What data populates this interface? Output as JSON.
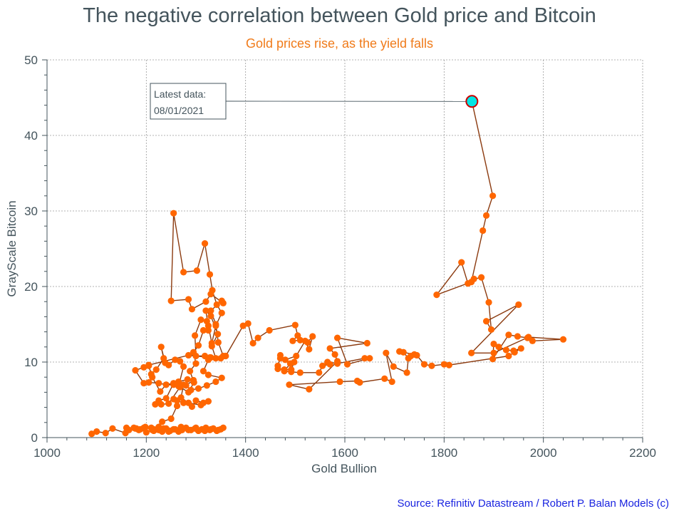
{
  "chart_data": {
    "type": "scatter",
    "title": "The negative correlation between Gold price and Bitcoin",
    "subtitle": "Gold prices rise, as the yield falls",
    "xlabel": "Gold Bullion",
    "ylabel": "GrayScale Bitcoin",
    "xlim": [
      1000,
      2200
    ],
    "ylim": [
      0,
      50
    ],
    "xticks": [
      1000,
      1200,
      1400,
      1600,
      1800,
      2000,
      2200
    ],
    "yticks": [
      0,
      10,
      20,
      30,
      40,
      50
    ],
    "grid": true,
    "line_color": "#8b3a0f",
    "marker_color": "#ff6600",
    "highlight_color": "#00e5e5",
    "highlight_edge": "#cc0000",
    "annotation": {
      "lines": [
        "Latest data:",
        "08/01/2021"
      ],
      "point": [
        1856,
        44.5
      ]
    },
    "source": "Source: Refinitiv Datastream / Robert P. Balan Models (c)",
    "points": [
      [
        1090,
        0.5
      ],
      [
        1100,
        0.8
      ],
      [
        1118,
        0.6
      ],
      [
        1132,
        1.2
      ],
      [
        1158,
        0.6
      ],
      [
        1160,
        1.3
      ],
      [
        1178,
        1.2
      ],
      [
        1185,
        1.0
      ],
      [
        1198,
        1.4
      ],
      [
        1210,
        1.3
      ],
      [
        1215,
        0.9
      ],
      [
        1225,
        1.0
      ],
      [
        1232,
        0.8
      ],
      [
        1240,
        1.2
      ],
      [
        1248,
        0.9
      ],
      [
        1258,
        1.1
      ],
      [
        1265,
        0.8
      ],
      [
        1272,
        1.0
      ],
      [
        1280,
        1.3
      ],
      [
        1290,
        1.0
      ],
      [
        1298,
        1.2
      ],
      [
        1305,
        0.9
      ],
      [
        1312,
        1.1
      ],
      [
        1320,
        1.3
      ],
      [
        1328,
        1.0
      ],
      [
        1335,
        1.2
      ],
      [
        1342,
        0.9
      ],
      [
        1350,
        1.1
      ],
      [
        1355,
        1.3
      ],
      [
        1345,
        1.0
      ],
      [
        1330,
        1.1
      ],
      [
        1318,
        0.9
      ],
      [
        1300,
        1.3
      ],
      [
        1285,
        1.0
      ],
      [
        1270,
        1.4
      ],
      [
        1255,
        1.1
      ],
      [
        1245,
        0.8
      ],
      [
        1235,
        1.2
      ],
      [
        1225,
        1.4
      ],
      [
        1212,
        1.0
      ],
      [
        1200,
        0.7
      ],
      [
        1188,
        1.1
      ],
      [
        1175,
        1.3
      ],
      [
        1165,
        1.0
      ],
      [
        1180,
        1.2
      ],
      [
        1195,
        1.3
      ],
      [
        1215,
        1.1
      ],
      [
        1232,
        2.1
      ],
      [
        1250,
        2.5
      ],
      [
        1262,
        4.2
      ],
      [
        1255,
        5.1
      ],
      [
        1262,
        4.9
      ],
      [
        1275,
        4.6
      ],
      [
        1292,
        4.1
      ],
      [
        1300,
        4.9
      ],
      [
        1315,
        4.6
      ],
      [
        1325,
        4.8
      ],
      [
        1310,
        4.3
      ],
      [
        1285,
        4.6
      ],
      [
        1270,
        5.3
      ],
      [
        1275,
        7.0
      ],
      [
        1265,
        6.8
      ],
      [
        1275,
        9.4
      ],
      [
        1268,
        10.1
      ],
      [
        1258,
        10.3
      ],
      [
        1245,
        9.6
      ],
      [
        1238,
        9.9
      ],
      [
        1230,
        12.0
      ],
      [
        1235,
        10.5
      ],
      [
        1220,
        9.0
      ],
      [
        1210,
        8.4
      ],
      [
        1205,
        9.5
      ],
      [
        1212,
        8.0
      ],
      [
        1228,
        6.1
      ],
      [
        1240,
        7.0
      ],
      [
        1255,
        7.2
      ],
      [
        1240,
        5.2
      ],
      [
        1225,
        4.9
      ],
      [
        1218,
        4.4
      ],
      [
        1230,
        4.4
      ],
      [
        1245,
        4.5
      ],
      [
        1268,
        6.7
      ],
      [
        1285,
        6.0
      ],
      [
        1296,
        7.3
      ],
      [
        1288,
        8.8
      ],
      [
        1300,
        9.8
      ],
      [
        1295,
        11.3
      ],
      [
        1305,
        12.2
      ],
      [
        1315,
        14.2
      ],
      [
        1325,
        14.2
      ],
      [
        1322,
        15.4
      ],
      [
        1310,
        15.6
      ],
      [
        1298,
        13.5
      ],
      [
        1300,
        10.8
      ],
      [
        1318,
        10.8
      ],
      [
        1328,
        10.6
      ],
      [
        1340,
        10.5
      ],
      [
        1332,
        12.1
      ],
      [
        1344,
        13.7
      ],
      [
        1330,
        16.1
      ],
      [
        1320,
        16.8
      ],
      [
        1325,
        14.8
      ],
      [
        1332,
        12.5
      ],
      [
        1340,
        14.8
      ],
      [
        1352,
        16.5
      ],
      [
        1342,
        17.6
      ],
      [
        1333,
        19.5
      ],
      [
        1328,
        21.6
      ],
      [
        1318,
        25.7
      ],
      [
        1302,
        22.1
      ],
      [
        1275,
        21.9
      ],
      [
        1255,
        29.7
      ],
      [
        1250,
        18.1
      ],
      [
        1285,
        18.3
      ],
      [
        1292,
        17.0
      ],
      [
        1320,
        18.0
      ],
      [
        1330,
        19.0
      ],
      [
        1355,
        17.8
      ],
      [
        1352,
        18.1
      ],
      [
        1330,
        16.8
      ],
      [
        1340,
        15.0
      ],
      [
        1345,
        12.6
      ],
      [
        1355,
        10.8
      ],
      [
        1350,
        10.5
      ],
      [
        1325,
        10.3
      ],
      [
        1315,
        8.8
      ],
      [
        1325,
        8.3
      ],
      [
        1352,
        7.9
      ],
      [
        1340,
        7.4
      ],
      [
        1322,
        6.9
      ],
      [
        1305,
        6.5
      ],
      [
        1290,
        6.3
      ],
      [
        1280,
        6.9
      ],
      [
        1295,
        7.6
      ],
      [
        1283,
        7.7
      ],
      [
        1265,
        7.4
      ],
      [
        1255,
        7.0
      ],
      [
        1240,
        7.0
      ],
      [
        1225,
        7.2
      ],
      [
        1205,
        7.3
      ],
      [
        1195,
        7.2
      ],
      [
        1178,
        8.9
      ],
      [
        1195,
        9.3
      ],
      [
        1205,
        9.6
      ],
      [
        1285,
        10.9
      ],
      [
        1330,
        10.6
      ],
      [
        1360,
        10.8
      ],
      [
        1395,
        14.8
      ],
      [
        1405,
        15.1
      ],
      [
        1415,
        12.5
      ],
      [
        1425,
        13.2
      ],
      [
        1448,
        14.2
      ],
      [
        1500,
        14.9
      ],
      [
        1505,
        13.5
      ],
      [
        1495,
        12.8
      ],
      [
        1510,
        12.9
      ],
      [
        1525,
        12.6
      ],
      [
        1535,
        13.4
      ],
      [
        1528,
        11.7
      ],
      [
        1520,
        12.8
      ],
      [
        1502,
        10.8
      ],
      [
        1480,
        10.3
      ],
      [
        1470,
        10.9
      ],
      [
        1470,
        10.5
      ],
      [
        1465,
        9.5
      ],
      [
        1465,
        9.1
      ],
      [
        1478,
        9.0
      ],
      [
        1492,
        9.0
      ],
      [
        1498,
        10.0
      ],
      [
        1490,
        9.8
      ],
      [
        1478,
        8.8
      ],
      [
        1492,
        8.7
      ],
      [
        1510,
        8.6
      ],
      [
        1548,
        8.6
      ],
      [
        1555,
        9.5
      ],
      [
        1570,
        9.7
      ],
      [
        1565,
        10.0
      ],
      [
        1585,
        9.8
      ],
      [
        1640,
        10.5
      ],
      [
        1650,
        10.5
      ],
      [
        1605,
        9.7
      ],
      [
        1585,
        13.2
      ],
      [
        1645,
        12.5
      ],
      [
        1570,
        11.8
      ],
      [
        1580,
        11.0
      ],
      [
        1585,
        10.1
      ],
      [
        1528,
        6.4
      ],
      [
        1488,
        7.0
      ],
      [
        1590,
        7.4
      ],
      [
        1625,
        7.5
      ],
      [
        1630,
        7.3
      ],
      [
        1680,
        7.8
      ],
      [
        1695,
        7.4
      ],
      [
        1683,
        11.2
      ],
      [
        1698,
        9.4
      ],
      [
        1725,
        8.6
      ],
      [
        1728,
        10.5
      ],
      [
        1718,
        11.3
      ],
      [
        1710,
        11.4
      ],
      [
        1740,
        11.0
      ],
      [
        1733,
        10.8
      ],
      [
        1745,
        10.9
      ],
      [
        1760,
        9.7
      ],
      [
        1775,
        9.5
      ],
      [
        1800,
        9.7
      ],
      [
        1810,
        9.6
      ],
      [
        1930,
        10.8
      ],
      [
        1942,
        11.3
      ],
      [
        1955,
        11.8
      ],
      [
        1940,
        11.5
      ],
      [
        1925,
        11.6
      ],
      [
        1910,
        12.0
      ],
      [
        1900,
        12.4
      ],
      [
        1898,
        10.4
      ],
      [
        1930,
        13.6
      ],
      [
        1948,
        13.4
      ],
      [
        1968,
        13.2
      ],
      [
        1978,
        12.8
      ],
      [
        2040,
        13.0
      ],
      [
        1970,
        13.3
      ],
      [
        1900,
        11.2
      ],
      [
        1855,
        11.2
      ],
      [
        1950,
        17.6
      ],
      [
        1885,
        15.4
      ],
      [
        1895,
        14.3
      ],
      [
        1890,
        17.9
      ],
      [
        1875,
        21.2
      ],
      [
        1860,
        21.0
      ],
      [
        1848,
        20.4
      ],
      [
        1835,
        23.2
      ],
      [
        1785,
        18.9
      ],
      [
        1855,
        20.6
      ],
      [
        1878,
        27.4
      ],
      [
        1885,
        29.4
      ],
      [
        1898,
        32.0
      ],
      [
        1856,
        44.5
      ]
    ]
  }
}
